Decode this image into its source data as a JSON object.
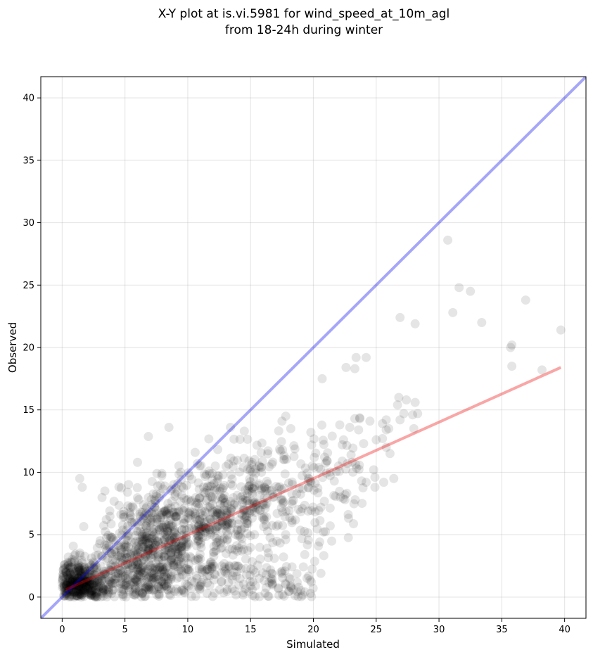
{
  "chart_data": {
    "type": "scatter",
    "title_line1": "X-Y plot at is.vi.5981 for wind_speed_at_10m_agl",
    "title_line2": "from 18-24h during winter",
    "xlabel": "Simulated",
    "ylabel": "Observed",
    "xlim": [
      -1.7,
      41.7
    ],
    "ylim": [
      -1.7,
      41.7
    ],
    "xticks": [
      0,
      5,
      10,
      15,
      20,
      25,
      30,
      35,
      40
    ],
    "yticks": [
      0,
      5,
      10,
      15,
      20,
      25,
      30,
      35,
      40
    ],
    "grid": true,
    "points_color": "#000000",
    "identity_line": {
      "color": "#0000ee",
      "from": [
        -1.7,
        -1.7
      ],
      "to": [
        41.7,
        41.7
      ]
    },
    "regression_line": {
      "color": "#ee0000",
      "from": [
        0.3,
        0.6
      ],
      "to": [
        39.7,
        18.4
      ]
    },
    "outliers": [
      [
        30.7,
        28.6
      ],
      [
        31.6,
        24.8
      ],
      [
        32.5,
        24.5
      ],
      [
        31.1,
        22.8
      ],
      [
        33.4,
        22.0
      ],
      [
        36.9,
        23.8
      ],
      [
        39.7,
        21.4
      ],
      [
        35.8,
        20.2
      ],
      [
        35.7,
        20.0
      ],
      [
        35.8,
        18.5
      ],
      [
        38.2,
        18.2
      ],
      [
        26.9,
        22.4
      ],
      [
        28.1,
        21.9
      ],
      [
        24.2,
        19.2
      ],
      [
        23.4,
        19.2
      ],
      [
        22.6,
        18.4
      ],
      [
        23.3,
        18.3
      ],
      [
        20.7,
        17.5
      ],
      [
        26.8,
        16.0
      ],
      [
        27.4,
        15.8
      ],
      [
        26.7,
        15.4
      ],
      [
        28.1,
        15.6
      ],
      [
        27.2,
        14.7
      ],
      [
        28.3,
        14.7
      ],
      [
        27.9,
        14.6
      ],
      [
        26.9,
        14.2
      ],
      [
        28.0,
        13.5
      ],
      [
        25.8,
        14.2
      ],
      [
        25.5,
        13.9
      ],
      [
        24.5,
        14.1
      ],
      [
        23.3,
        14.3
      ],
      [
        23.7,
        14.3
      ],
      [
        25.8,
        13.4
      ],
      [
        26.0,
        13.5
      ],
      [
        22.9,
        13.6
      ],
      [
        23.6,
        13.4
      ],
      [
        22.1,
        13.8
      ],
      [
        21.5,
        12.9
      ],
      [
        22.4,
        12.6
      ],
      [
        22.3,
        12.2
      ],
      [
        24.0,
        12.3
      ],
      [
        25.0,
        12.6
      ],
      [
        25.5,
        12.7
      ],
      [
        25.8,
        12.0
      ],
      [
        26.1,
        11.5
      ],
      [
        23.0,
        11.4
      ],
      [
        22.3,
        10.9
      ],
      [
        22.0,
        10.5
      ],
      [
        21.1,
        10.9
      ],
      [
        25.6,
        9.2
      ],
      [
        26.4,
        9.5
      ],
      [
        24.8,
        10.2
      ],
      [
        24.9,
        9.6
      ],
      [
        24.2,
        9.2
      ],
      [
        24.9,
        8.8
      ],
      [
        20.6,
        7.2
      ],
      [
        20.4,
        4.1
      ],
      [
        20.6,
        1.9
      ],
      [
        8.5,
        13.6
      ],
      [
        14.5,
        13.3
      ],
      [
        13.4,
        13.6
      ],
      [
        17.8,
        14.5
      ],
      [
        17.5,
        14.1
      ],
      [
        18.2,
        13.5
      ],
      [
        19.8,
        13.2
      ],
      [
        6.0,
        10.8
      ],
      [
        1.4,
        9.5
      ],
      [
        1.6,
        8.8
      ],
      [
        3.4,
        8.5
      ],
      [
        5.2,
        8.4
      ]
    ]
  }
}
